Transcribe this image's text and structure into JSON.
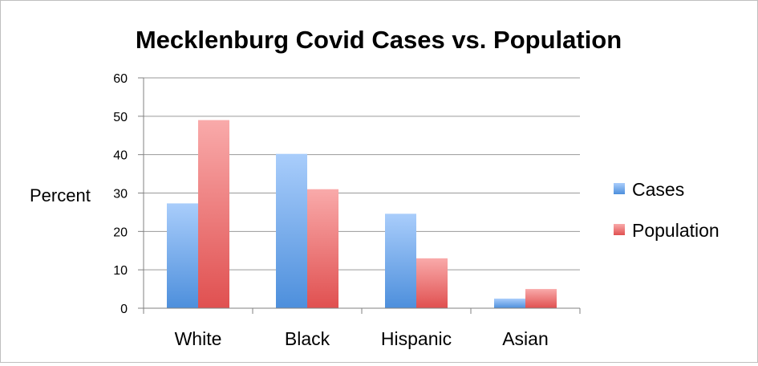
{
  "chart_data": {
    "type": "bar",
    "title": "Mecklenburg Covid Cases vs. Population",
    "xlabel": "",
    "ylabel": "Percent",
    "categories": [
      "White",
      "Black",
      "Hispanic",
      "Asian"
    ],
    "series": [
      {
        "name": "Cases",
        "values": [
          27.3,
          40.2,
          24.6,
          2.5
        ],
        "color_top": "#a9cdfb",
        "color_bottom": "#4d8fdc"
      },
      {
        "name": "Population",
        "values": [
          49,
          31,
          13,
          5
        ],
        "color_top": "#f9aaaa",
        "color_bottom": "#e05050"
      }
    ],
    "ylim": [
      0,
      60
    ],
    "yticks": [
      0,
      10,
      20,
      30,
      40,
      50,
      60
    ],
    "grid": true,
    "legend": "right",
    "gridline_color": "#9a9a9a",
    "axis_color": "#808080"
  }
}
